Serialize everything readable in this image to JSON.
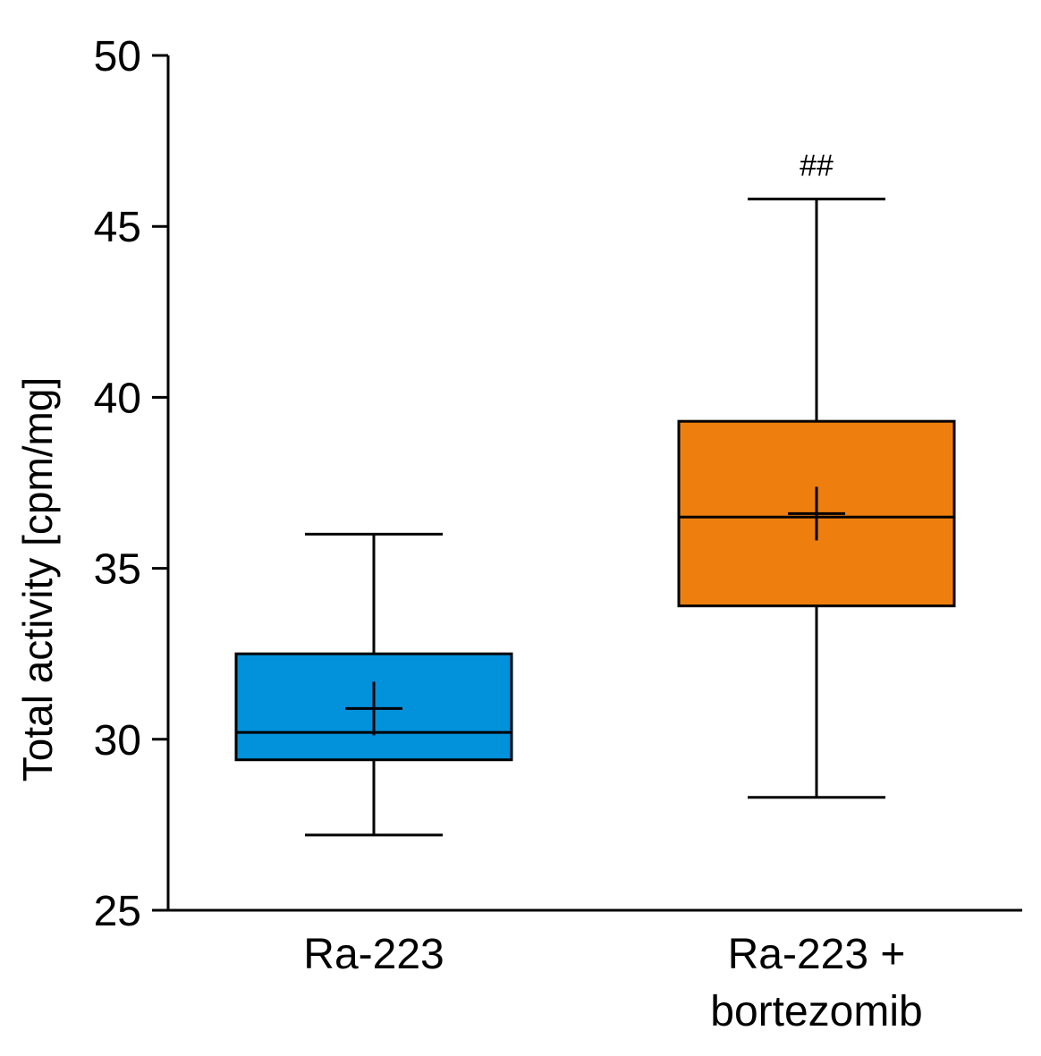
{
  "chart_data": {
    "type": "box",
    "title": "",
    "xlabel": "",
    "ylabel": "Total activity [cpm/mg]",
    "ylim": [
      25,
      50
    ],
    "yticks": [
      25,
      30,
      35,
      40,
      45,
      50
    ],
    "ytick_labels": [
      "25",
      "30",
      "35",
      "40",
      "45",
      "50"
    ],
    "categories": [
      {
        "lines": [
          "Ra-223"
        ]
      },
      {
        "lines": [
          "Ra-223 +",
          "bortezomib"
        ]
      }
    ],
    "series": [
      {
        "name": "Ra-223",
        "color": "#0291DB",
        "whisker_low": 27.2,
        "q1": 29.4,
        "median": 30.2,
        "q3": 32.5,
        "whisker_high": 36.0,
        "mean": 30.9,
        "annotation": ""
      },
      {
        "name": "Ra-223 + bortezomib",
        "color": "#EE7F0E",
        "whisker_low": 28.3,
        "q1": 33.9,
        "median": 36.5,
        "q3": 39.3,
        "whisker_high": 45.8,
        "mean": 36.6,
        "annotation": "##"
      }
    ],
    "grid": false,
    "legend": "none"
  }
}
